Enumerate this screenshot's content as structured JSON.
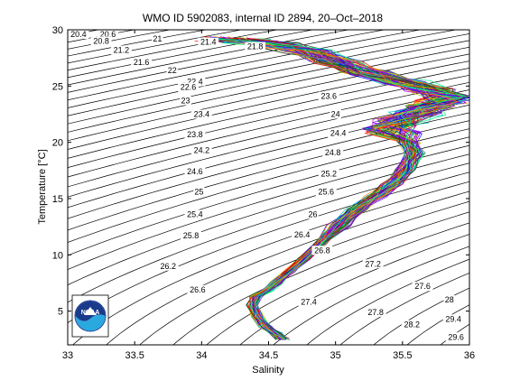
{
  "chart_data": {
    "type": "line",
    "title": "WMO ID 5902083, internal ID 2894, 20–Oct–2018",
    "xlabel": "Salinity",
    "ylabel": "Temperature [°C]",
    "xlim": [
      33,
      36
    ],
    "ylim": [
      2,
      30
    ],
    "xticks": [
      "33",
      "33.5",
      "34",
      "34.5",
      "35",
      "35.5",
      "36"
    ],
    "yticks": [
      "5",
      "10",
      "15",
      "20",
      "25",
      "30"
    ],
    "xtick_values": [
      33,
      33.5,
      34,
      34.5,
      35,
      35.5,
      36
    ],
    "ytick_values": [
      5,
      10,
      15,
      20,
      25,
      30
    ],
    "grid": false,
    "density_contours": {
      "from": 20.4,
      "to": 29.6,
      "step": 0.2,
      "labels": [
        {
          "text": "20.4",
          "s": 33.08,
          "t": 29.6
        },
        {
          "text": "20.6",
          "s": 33.3,
          "t": 29.6
        },
        {
          "text": "20.8",
          "s": 33.25,
          "t": 29.0
        },
        {
          "text": "21",
          "s": 33.67,
          "t": 29.2
        },
        {
          "text": "21.2",
          "s": 33.4,
          "t": 28.2
        },
        {
          "text": "21.4",
          "s": 34.05,
          "t": 28.9
        },
        {
          "text": "21.6",
          "s": 33.55,
          "t": 27.1
        },
        {
          "text": "21.8",
          "s": 34.4,
          "t": 28.5
        },
        {
          "text": "22",
          "s": 33.78,
          "t": 26.4
        },
        {
          "text": "22.4",
          "s": 33.95,
          "t": 25.4
        },
        {
          "text": "22.6",
          "s": 33.9,
          "t": 24.9
        },
        {
          "text": "23",
          "s": 33.88,
          "t": 23.7
        },
        {
          "text": "23.4",
          "s": 34.0,
          "t": 22.5
        },
        {
          "text": "23.6",
          "s": 34.95,
          "t": 24.1
        },
        {
          "text": "23.8",
          "s": 33.95,
          "t": 20.7
        },
        {
          "text": "24",
          "s": 35.0,
          "t": 22.5
        },
        {
          "text": "24.2",
          "s": 34.0,
          "t": 19.3
        },
        {
          "text": "24.4",
          "s": 35.02,
          "t": 20.8
        },
        {
          "text": "24.6",
          "s": 33.95,
          "t": 17.4
        },
        {
          "text": "24.8",
          "s": 34.98,
          "t": 19.1
        },
        {
          "text": "25",
          "s": 33.98,
          "t": 15.6
        },
        {
          "text": "25.2",
          "s": 34.95,
          "t": 17.2
        },
        {
          "text": "25.4",
          "s": 33.95,
          "t": 13.6
        },
        {
          "text": "25.6",
          "s": 34.93,
          "t": 15.6
        },
        {
          "text": "25.8",
          "s": 33.92,
          "t": 11.7
        },
        {
          "text": "26",
          "s": 34.83,
          "t": 13.6
        },
        {
          "text": "26.2",
          "s": 33.75,
          "t": 9.0
        },
        {
          "text": "26.4",
          "s": 34.75,
          "t": 11.8
        },
        {
          "text": "26.6",
          "s": 33.97,
          "t": 6.9
        },
        {
          "text": "26.8",
          "s": 34.9,
          "t": 10.4
        },
        {
          "text": "27.2",
          "s": 35.28,
          "t": 9.2
        },
        {
          "text": "27.4",
          "s": 34.8,
          "t": 5.8
        },
        {
          "text": "27.6",
          "s": 35.65,
          "t": 7.2
        },
        {
          "text": "27.8",
          "s": 35.3,
          "t": 4.9
        },
        {
          "text": "28",
          "s": 35.85,
          "t": 6.0
        },
        {
          "text": "28.2",
          "s": 35.57,
          "t": 3.8
        },
        {
          "text": "29.4",
          "s": 35.88,
          "t": 4.3
        },
        {
          "text": "29.6",
          "s": 35.9,
          "t": 2.7
        }
      ]
    },
    "profiles": {
      "count": 70,
      "mean_curve": [
        [
          34.6,
          2.5
        ],
        [
          34.55,
          3.0
        ],
        [
          34.48,
          3.6
        ],
        [
          34.42,
          4.5
        ],
        [
          34.38,
          5.5
        ],
        [
          34.4,
          6.3
        ],
        [
          34.48,
          6.8
        ],
        [
          34.56,
          7.5
        ],
        [
          34.65,
          8.4
        ],
        [
          34.76,
          9.6
        ],
        [
          34.88,
          11.0
        ],
        [
          35.02,
          12.6
        ],
        [
          35.16,
          14.0
        ],
        [
          35.3,
          15.2
        ],
        [
          35.42,
          16.3
        ],
        [
          35.52,
          17.6
        ],
        [
          35.58,
          19.0
        ],
        [
          35.55,
          20.0
        ],
        [
          35.45,
          20.8
        ],
        [
          35.4,
          21.3
        ],
        [
          35.48,
          21.9
        ],
        [
          35.6,
          22.6
        ],
        [
          35.72,
          23.2
        ],
        [
          35.8,
          23.6
        ],
        [
          35.82,
          24.0
        ],
        [
          35.7,
          24.6
        ],
        [
          35.5,
          25.3
        ],
        [
          35.25,
          26.2
        ],
        [
          35.0,
          27.2
        ],
        [
          34.78,
          28.1
        ],
        [
          34.55,
          28.7
        ],
        [
          34.35,
          29.0
        ],
        [
          34.15,
          29.2
        ]
      ]
    },
    "colors": [
      "#0000ff",
      "#008000",
      "#ff0000",
      "#00bfbf",
      "#bf00bf",
      "#bfbf00",
      "#404040",
      "#ff8000",
      "#8000ff",
      "#00ff80"
    ]
  }
}
